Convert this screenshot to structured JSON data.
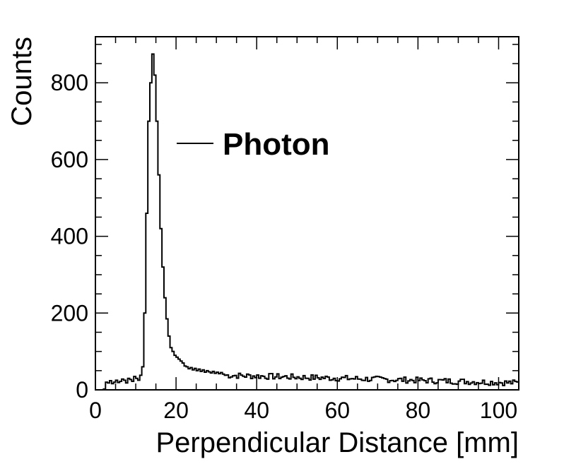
{
  "chart_data": {
    "type": "histogram",
    "xlabel": "Perpendicular Distance [mm]",
    "ylabel": "Counts",
    "xlim": [
      0,
      105
    ],
    "ylim": [
      0,
      920
    ],
    "xticks": [
      0,
      20,
      40,
      60,
      80,
      100
    ],
    "yticks": [
      0,
      200,
      400,
      600,
      800
    ],
    "x_tick_labels": [
      "0",
      "20",
      "40",
      "60",
      "80",
      "100"
    ],
    "y_tick_labels": [
      "0",
      "200",
      "400",
      "600",
      "800"
    ],
    "grid": false,
    "legend_position": "top-center",
    "series": [
      {
        "name": "Photon",
        "color": "#000000",
        "bin_width": 0.5,
        "x_start": 2.0,
        "values": [
          2,
          20,
          18,
          24,
          16,
          20,
          25,
          19,
          22,
          28,
          25,
          18,
          30,
          27,
          22,
          35,
          30,
          25,
          38,
          60,
          200,
          460,
          700,
          800,
          875,
          820,
          700,
          560,
          420,
          320,
          240,
          185,
          140,
          110,
          100,
          90,
          85,
          80,
          75,
          70,
          62,
          60,
          55,
          58,
          52,
          56,
          50,
          54,
          48,
          52,
          46,
          50,
          47,
          44,
          48,
          43,
          46,
          42,
          45,
          41
        ],
        "tail_level": 38,
        "tail_end_level": 18
      }
    ]
  }
}
